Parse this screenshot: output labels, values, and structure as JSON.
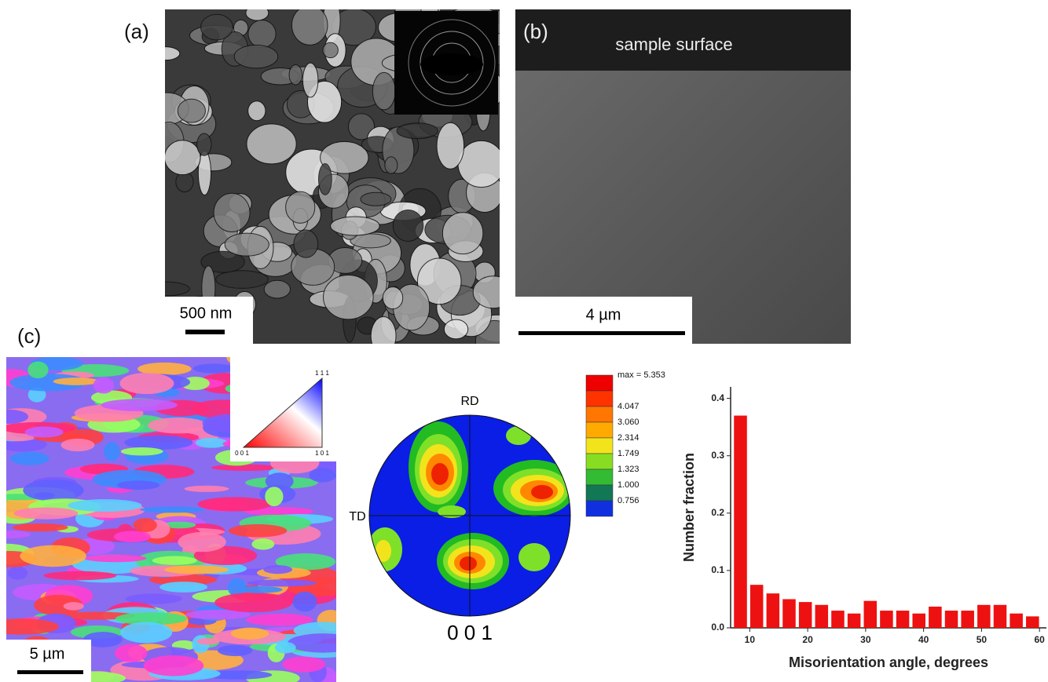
{
  "panels": {
    "a": {
      "label": "(a)",
      "scale_bar": "500 nm"
    },
    "b": {
      "label": "(b)",
      "caption": "sample surface",
      "scale_bar": "4 µm"
    },
    "c": {
      "label": "(c)",
      "scale_bar": "5 µm",
      "ipf_key": {
        "top": "1 1 1",
        "left": "0 0 1",
        "right": "1 0 1"
      },
      "pole_figure": {
        "top_label": "RD",
        "left_label": "TD",
        "plane": "0 0 1",
        "legend": [
          "max = 5.353",
          "4.047",
          "3.060",
          "2.314",
          "1.749",
          "1.323",
          "1.000",
          "0.756"
        ]
      }
    }
  },
  "chart_data": {
    "type": "histogram",
    "bins": [
      7.0,
      9.8,
      12.6,
      15.4,
      18.2,
      21.0,
      23.8,
      26.6,
      29.4,
      32.2,
      35.0,
      37.8,
      40.6,
      43.4,
      46.2,
      49.0,
      51.8,
      54.6,
      57.4,
      60.2
    ],
    "values": [
      0.37,
      0.075,
      0.06,
      0.05,
      0.045,
      0.04,
      0.03,
      0.025,
      0.047,
      0.03,
      0.03,
      0.025,
      0.037,
      0.03,
      0.03,
      0.04,
      0.04,
      0.025,
      0.02
    ],
    "color": "#ee1111",
    "x_label": "Misorientation angle, degrees",
    "y_label": "Number fraction",
    "xlim": [
      6.7,
      61.2
    ],
    "xticks": [
      10,
      20,
      30,
      40,
      50,
      60
    ],
    "ylim": [
      0,
      0.42
    ],
    "yticks": [
      {
        "value": 0,
        "label": "0.0"
      },
      0.1,
      0.2,
      0.3,
      0.4
    ]
  }
}
